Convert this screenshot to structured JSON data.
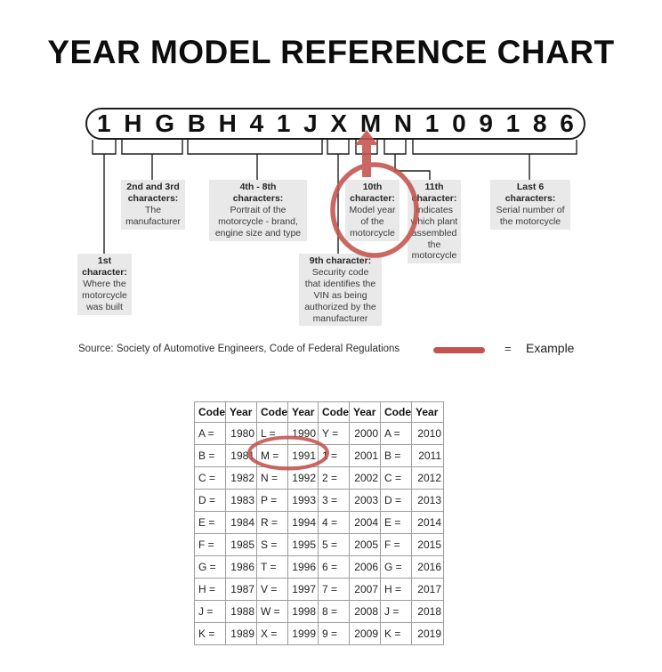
{
  "colors": {
    "accent_red": "#c4534e",
    "box_grey": "#e9e9e9",
    "line_black": "#1f1f1f",
    "grid_grey": "#9c9c9c"
  },
  "title": "YEAR MODEL REFERENCE CHART",
  "vin": {
    "characters": [
      "1",
      "H",
      "G",
      "B",
      "H",
      "4",
      "1",
      "J",
      "X",
      "M",
      "N",
      "1",
      "0",
      "9",
      "1",
      "8",
      "6"
    ]
  },
  "callouts": {
    "first": {
      "head": "1st\ncharacter:",
      "body": "Where the\nmotorcycle\nwas built"
    },
    "second_third": {
      "head": "2nd and 3rd\ncharacters:",
      "body": "The\nmanufacturer"
    },
    "fourth_eighth": {
      "head": "4th - 8th\ncharacters:",
      "body": "Portrait of the\nmotorcycle - brand,\nengine size and type"
    },
    "ninth": {
      "head": "9th character:",
      "body": "Security code\nthat identifies the\nVIN as being\nauthorized by the\nmanufacturer"
    },
    "tenth": {
      "head": "10th\ncharacter:",
      "body": "Model year\nof the\nmotorcycle"
    },
    "eleventh": {
      "head": "11th\ncharacter:",
      "body": "Indicates\nwhich plant\nassembled\nthe\nmotorcycle"
    },
    "last_six": {
      "head": "Last 6\ncharacters:",
      "body": "Serial number of\nthe motorcycle"
    }
  },
  "legend": {
    "source": "Source:  Society of Automotive Engineers, Code of Federal Regulations",
    "swatch_icon": "red-example-line",
    "equals": "=",
    "label": "Example"
  },
  "table": {
    "headers": [
      "Code",
      "Year",
      "Code",
      "Year",
      "Code",
      "Year",
      "Code",
      "Year"
    ],
    "rows": [
      [
        "A =",
        "1980",
        "L =",
        "1990",
        "Y =",
        "2000",
        "A =",
        "2010"
      ],
      [
        "B =",
        "1981",
        "M =",
        "1991",
        "1 =",
        "2001",
        "B =",
        "2011"
      ],
      [
        "C =",
        "1982",
        "N =",
        "1992",
        "2 =",
        "2002",
        "C =",
        "2012"
      ],
      [
        "D =",
        "1983",
        "P =",
        "1993",
        "3 =",
        "2003",
        "D =",
        "2013"
      ],
      [
        "E =",
        "1984",
        "R =",
        "1994",
        "4 =",
        "2004",
        "E =",
        "2014"
      ],
      [
        "F =",
        "1985",
        "S =",
        "1995",
        "5 =",
        "2005",
        "F =",
        "2015"
      ],
      [
        "G =",
        "1986",
        "T =",
        "1996",
        "6 =",
        "2006",
        "G =",
        "2016"
      ],
      [
        "H =",
        "1987",
        "V =",
        "1997",
        "7 =",
        "2007",
        "H =",
        "2017"
      ],
      [
        "J =",
        "1988",
        "W =",
        "1998",
        "8 =",
        "2008",
        "J =",
        "2018"
      ],
      [
        "K =",
        "1989",
        "X =",
        "1999",
        "9 =",
        "2009",
        "K =",
        "2019"
      ]
    ]
  }
}
